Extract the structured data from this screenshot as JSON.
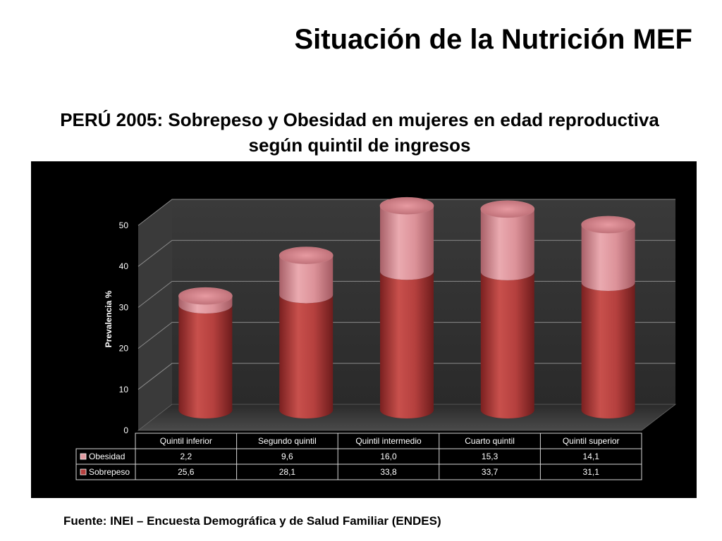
{
  "slide": {
    "title": "Situación de la Nutrición MEF",
    "source": "Fuente: INEI – Encuesta Demográfica y de Salud Familiar (ENDES)"
  },
  "chart_data": {
    "type": "bar",
    "variant": "stacked-3d-cylinder",
    "title": "PERÚ 2005: Sobrepeso y Obesidad en mujeres en edad reproductiva según quintil de ingresos",
    "xlabel": "",
    "ylabel": "Prevalencia %",
    "ylim": [
      0,
      50
    ],
    "yticks": [
      0,
      10,
      20,
      30,
      40,
      50
    ],
    "grid": true,
    "legend": "data-table-below",
    "categories": [
      "Quintil inferior",
      "Segundo quintil",
      "Quintil intermedio",
      "Cuarto quintil",
      "Quintil superior"
    ],
    "series": [
      {
        "name": "Sobrepeso",
        "values": [
          25.6,
          28.1,
          33.8,
          33.7,
          31.1
        ],
        "labels": [
          "25,6",
          "28,1",
          "33,8",
          "33,7",
          "31,1"
        ],
        "color": "#b5403e"
      },
      {
        "name": "Obesidad",
        "values": [
          2.2,
          9.6,
          16.0,
          15.3,
          14.1
        ],
        "labels": [
          "2,2",
          "9,6",
          "16,0",
          "15,3",
          "14,1"
        ],
        "color": "#e09aa0"
      }
    ],
    "table_rows": [
      "Obesidad",
      "Sobrepeso"
    ]
  }
}
